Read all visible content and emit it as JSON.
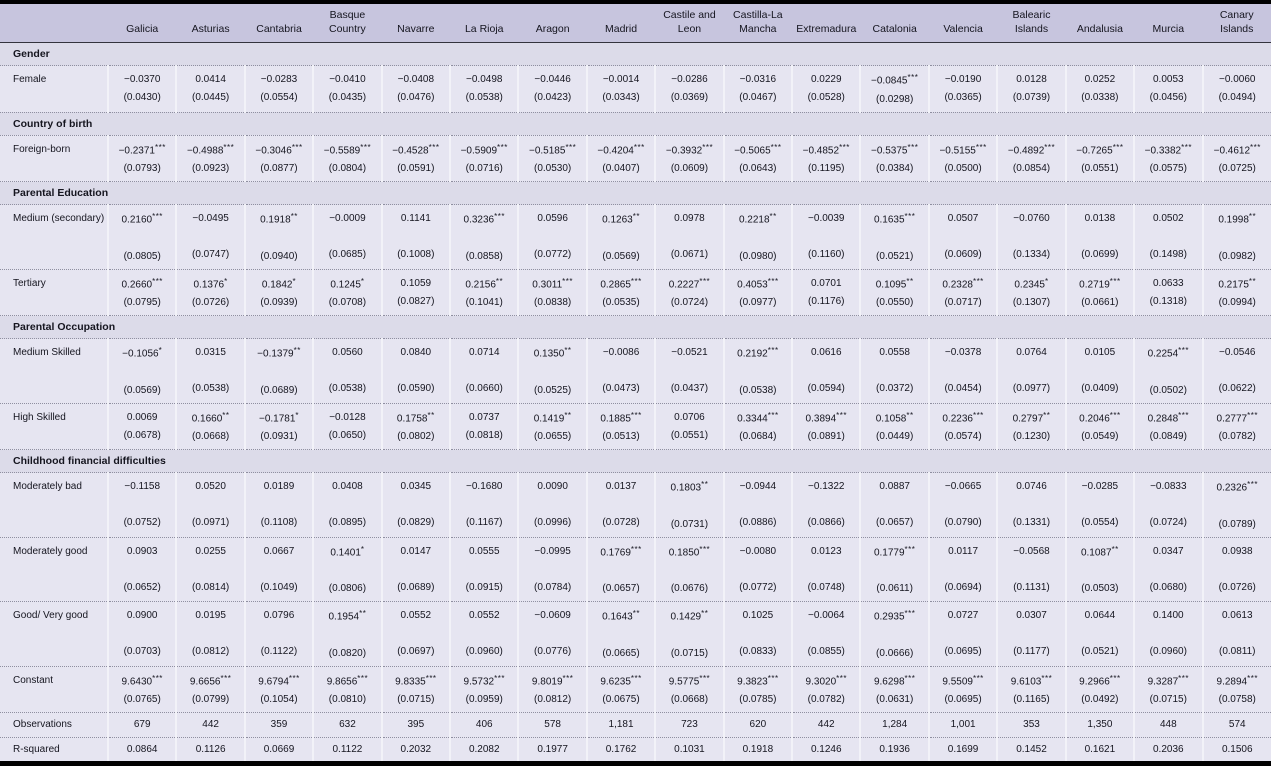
{
  "table": {
    "columns": [
      "Galicia",
      "Asturias",
      "Cantabria",
      "Basque Country",
      "Navarre",
      "La Rioja",
      "Aragon",
      "Madrid",
      "Castile and Leon",
      "Castilla-La Mancha",
      "Extremadura",
      "Catalonia",
      "Valencia",
      "Balearic Islands",
      "Andalusia",
      "Murcia",
      "Canary Islands"
    ],
    "sections": [
      {
        "title": "Gender",
        "rows": [
          {
            "label": "Female",
            "wrap": false,
            "coef": [
              "−0.0370",
              "0.0414",
              "−0.0283",
              "−0.0410",
              "−0.0408",
              "−0.0498",
              "−0.0446",
              "−0.0014",
              "−0.0286",
              "−0.0316",
              "0.0229",
              "−0.0845***",
              "−0.0190",
              "0.0128",
              "0.0252",
              "0.0053",
              "−0.0060"
            ],
            "se": [
              "(0.0430)",
              "(0.0445)",
              "(0.0554)",
              "(0.0435)",
              "(0.0476)",
              "(0.0538)",
              "(0.0423)",
              "(0.0343)",
              "(0.0369)",
              "(0.0467)",
              "(0.0528)",
              "(0.0298)",
              "(0.0365)",
              "(0.0739)",
              "(0.0338)",
              "(0.0456)",
              "(0.0494)"
            ]
          }
        ]
      },
      {
        "title": "Country of birth",
        "rows": [
          {
            "label": "Foreign-born",
            "wrap": false,
            "coef": [
              "−0.2371***",
              "−0.4988***",
              "−0.3046***",
              "−0.5589***",
              "−0.4528***",
              "−0.5909***",
              "−0.5185***",
              "−0.4204***",
              "−0.3932***",
              "−0.5065***",
              "−0.4852***",
              "−0.5375***",
              "−0.5155***",
              "−0.4892***",
              "−0.7265***",
              "−0.3382***",
              "−0.4612***"
            ],
            "se": [
              "(0.0793)",
              "(0.0923)",
              "(0.0877)",
              "(0.0804)",
              "(0.0591)",
              "(0.0716)",
              "(0.0530)",
              "(0.0407)",
              "(0.0609)",
              "(0.0643)",
              "(0.1195)",
              "(0.0384)",
              "(0.0500)",
              "(0.0854)",
              "(0.0551)",
              "(0.0575)",
              "(0.0725)"
            ]
          }
        ]
      },
      {
        "title": "Parental Education",
        "rows": [
          {
            "label": "Medium (secondary)",
            "wrap": true,
            "coef": [
              "0.2160***",
              "−0.0495",
              "0.1918**",
              "−0.0009",
              "0.1141",
              "0.3236***",
              "0.0596",
              "0.1263**",
              "0.0978",
              "0.2218**",
              "−0.0039",
              "0.1635***",
              "0.0507",
              "−0.0760",
              "0.0138",
              "0.0502",
              "0.1998**"
            ],
            "se": [
              "(0.0805)",
              "(0.0747)",
              "(0.0940)",
              "(0.0685)",
              "(0.1008)",
              "(0.0858)",
              "(0.0772)",
              "(0.0569)",
              "(0.0671)",
              "(0.0980)",
              "(0.1160)",
              "(0.0521)",
              "(0.0609)",
              "(0.1334)",
              "(0.0699)",
              "(0.1498)",
              "(0.0982)"
            ]
          },
          {
            "label": "Tertiary",
            "wrap": false,
            "coef": [
              "0.2660***",
              "0.1376*",
              "0.1842*",
              "0.1245*",
              "0.1059",
              "0.2156**",
              "0.3011***",
              "0.2865***",
              "0.2227***",
              "0.4053***",
              "0.0701",
              "0.1095**",
              "0.2328***",
              "0.2345*",
              "0.2719***",
              "0.0633",
              "0.2175**"
            ],
            "se": [
              "(0.0795)",
              "(0.0726)",
              "(0.0939)",
              "(0.0708)",
              "(0.0827)",
              "(0.1041)",
              "(0.0838)",
              "(0.0535)",
              "(0.0724)",
              "(0.0977)",
              "(0.1176)",
              "(0.0550)",
              "(0.0717)",
              "(0.1307)",
              "(0.0661)",
              "(0.1318)",
              "(0.0994)"
            ]
          }
        ]
      },
      {
        "title": "Parental Occupation",
        "rows": [
          {
            "label": "Medium Skilled",
            "wrap": true,
            "coef": [
              "−0.1056*",
              "0.0315",
              "−0.1379**",
              "0.0560",
              "0.0840",
              "0.0714",
              "0.1350**",
              "−0.0086",
              "−0.0521",
              "0.2192***",
              "0.0616",
              "0.0558",
              "−0.0378",
              "0.0764",
              "0.0105",
              "0.2254***",
              "−0.0546"
            ],
            "se": [
              "(0.0569)",
              "(0.0538)",
              "(0.0689)",
              "(0.0538)",
              "(0.0590)",
              "(0.0660)",
              "(0.0525)",
              "(0.0473)",
              "(0.0437)",
              "(0.0538)",
              "(0.0594)",
              "(0.0372)",
              "(0.0454)",
              "(0.0977)",
              "(0.0409)",
              "(0.0502)",
              "(0.0622)"
            ]
          },
          {
            "label": "High Skilled",
            "wrap": false,
            "coef": [
              "0.0069",
              "0.1660**",
              "−0.1781*",
              "−0.0128",
              "0.1758**",
              "0.0737",
              "0.1419**",
              "0.1885***",
              "0.0706",
              "0.3344***",
              "0.3894***",
              "0.1058**",
              "0.2236***",
              "0.2797**",
              "0.2046***",
              "0.2848***",
              "0.2777***"
            ],
            "se": [
              "(0.0678)",
              "(0.0668)",
              "(0.0931)",
              "(0.0650)",
              "(0.0802)",
              "(0.0818)",
              "(0.0655)",
              "(0.0513)",
              "(0.0551)",
              "(0.0684)",
              "(0.0891)",
              "(0.0449)",
              "(0.0574)",
              "(0.1230)",
              "(0.0549)",
              "(0.0849)",
              "(0.0782)"
            ]
          }
        ]
      },
      {
        "title": "Childhood financial difficulties",
        "rows": [
          {
            "label": "Moderately bad",
            "wrap": true,
            "coef": [
              "−0.1158",
              "0.0520",
              "0.0189",
              "0.0408",
              "0.0345",
              "−0.1680",
              "0.0090",
              "0.0137",
              "0.1803**",
              "−0.0944",
              "−0.1322",
              "0.0887",
              "−0.0665",
              "0.0746",
              "−0.0285",
              "−0.0833",
              "0.2326***"
            ],
            "se": [
              "(0.0752)",
              "(0.0971)",
              "(0.1108)",
              "(0.0895)",
              "(0.0829)",
              "(0.1167)",
              "(0.0996)",
              "(0.0728)",
              "(0.0731)",
              "(0.0886)",
              "(0.0866)",
              "(0.0657)",
              "(0.0790)",
              "(0.1331)",
              "(0.0554)",
              "(0.0724)",
              "(0.0789)"
            ]
          },
          {
            "label": "Moderately good",
            "wrap": true,
            "coef": [
              "0.0903",
              "0.0255",
              "0.0667",
              "0.1401*",
              "0.0147",
              "0.0555",
              "−0.0995",
              "0.1769***",
              "0.1850***",
              "−0.0080",
              "0.0123",
              "0.1779***",
              "0.0117",
              "−0.0568",
              "0.1087**",
              "0.0347",
              "0.0938"
            ],
            "se": [
              "(0.0652)",
              "(0.0814)",
              "(0.1049)",
              "(0.0806)",
              "(0.0689)",
              "(0.0915)",
              "(0.0784)",
              "(0.0657)",
              "(0.0676)",
              "(0.0772)",
              "(0.0748)",
              "(0.0611)",
              "(0.0694)",
              "(0.1131)",
              "(0.0503)",
              "(0.0680)",
              "(0.0726)"
            ]
          },
          {
            "label": "Good/ Very good",
            "wrap": true,
            "coef": [
              "0.0900",
              "0.0195",
              "0.0796",
              "0.1954**",
              "0.0552",
              "0.0552",
              "−0.0609",
              "0.1643**",
              "0.1429**",
              "0.1025",
              "−0.0064",
              "0.2935***",
              "0.0727",
              "0.0307",
              "0.0644",
              "0.1400",
              "0.0613"
            ],
            "se": [
              "(0.0703)",
              "(0.0812)",
              "(0.1122)",
              "(0.0820)",
              "(0.0697)",
              "(0.0960)",
              "(0.0776)",
              "(0.0665)",
              "(0.0715)",
              "(0.0833)",
              "(0.0855)",
              "(0.0666)",
              "(0.0695)",
              "(0.1177)",
              "(0.0521)",
              "(0.0960)",
              "(0.0811)"
            ]
          }
        ]
      },
      {
        "title": null,
        "rows": [
          {
            "label": "Constant",
            "wrap": false,
            "coef": [
              "9.6430***",
              "9.6656***",
              "9.6794***",
              "9.8656***",
              "9.8335***",
              "9.5732***",
              "9.8019***",
              "9.6235***",
              "9.5775***",
              "9.3823***",
              "9.3020***",
              "9.6298***",
              "9.5509***",
              "9.6103***",
              "9.2966***",
              "9.3287***",
              "9.2894***"
            ],
            "se": [
              "(0.0765)",
              "(0.0799)",
              "(0.1054)",
              "(0.0810)",
              "(0.0715)",
              "(0.0959)",
              "(0.0812)",
              "(0.0675)",
              "(0.0668)",
              "(0.0785)",
              "(0.0782)",
              "(0.0631)",
              "(0.0695)",
              "(0.1165)",
              "(0.0492)",
              "(0.0715)",
              "(0.0758)"
            ]
          }
        ]
      }
    ],
    "stats": [
      {
        "label": "Observations",
        "values": [
          "679",
          "442",
          "359",
          "632",
          "395",
          "406",
          "578",
          "1,181",
          "723",
          "620",
          "442",
          "1,284",
          "1,001",
          "353",
          "1,350",
          "448",
          "574"
        ]
      },
      {
        "label": "R-squared",
        "values": [
          "0.0864",
          "0.1126",
          "0.0669",
          "0.1122",
          "0.2032",
          "0.2082",
          "0.1977",
          "0.1762",
          "0.1031",
          "0.1918",
          "0.1246",
          "0.1936",
          "0.1699",
          "0.1452",
          "0.1621",
          "0.2036",
          "0.1506"
        ]
      }
    ],
    "colors": {
      "rule": "#000000",
      "header_bg": "#c7c5de",
      "section_bg": "#dcdbe9",
      "row_bg": "#e6e5f1"
    }
  }
}
